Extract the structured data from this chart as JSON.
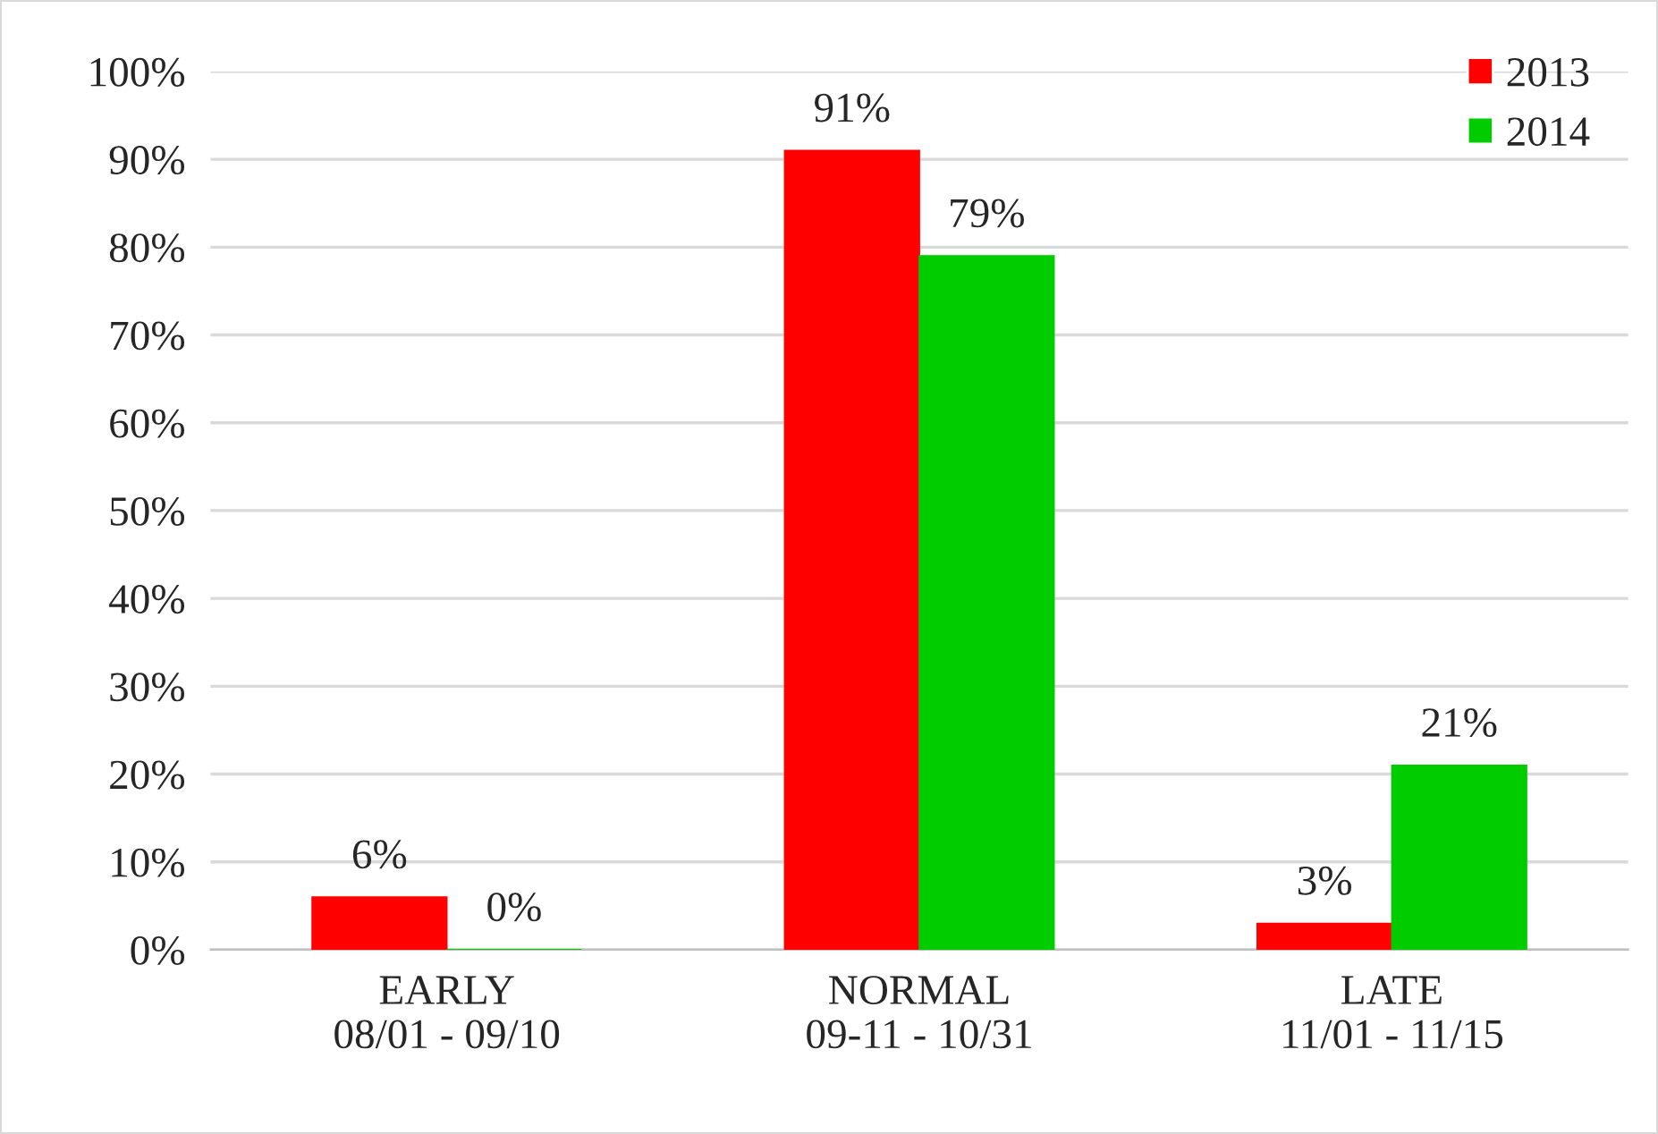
{
  "chart_data": {
    "type": "bar",
    "categories": [
      "EARLY\n08/01 - 09/10",
      "NORMAL\n09-11 - 10/31",
      "LATE\n11/01 - 11/15"
    ],
    "series": [
      {
        "name": "2013",
        "color": "#ff0000",
        "values": [
          6,
          91,
          3
        ],
        "value_labels": [
          "6%",
          "91%",
          "3%"
        ]
      },
      {
        "name": "2014",
        "color": "#00cc00",
        "values": [
          0,
          79,
          21
        ],
        "value_labels": [
          "0%",
          "79%",
          "21%"
        ]
      }
    ],
    "ylim": [
      0,
      100
    ],
    "yticks": [
      {
        "value": 0,
        "label": "0%"
      },
      {
        "value": 10,
        "label": "10%"
      },
      {
        "value": 20,
        "label": "20%"
      },
      {
        "value": 30,
        "label": "30%"
      },
      {
        "value": 40,
        "label": "40%"
      },
      {
        "value": 50,
        "label": "50%"
      },
      {
        "value": 60,
        "label": "60%"
      },
      {
        "value": 70,
        "label": "70%"
      },
      {
        "value": 80,
        "label": "80%"
      },
      {
        "value": 90,
        "label": "90%"
      },
      {
        "value": 100,
        "label": "100%"
      }
    ],
    "grid": "y",
    "legend": "top right"
  }
}
